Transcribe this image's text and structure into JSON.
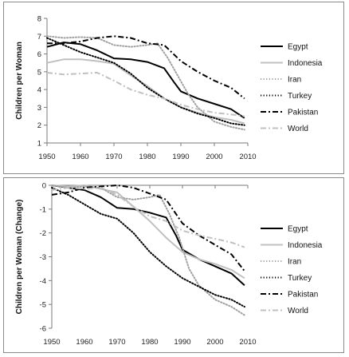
{
  "chart_data": [
    {
      "type": "line",
      "ylabel": "Children per Woman",
      "xlabel": "",
      "xlim": [
        1950,
        2010
      ],
      "ylim": [
        1,
        8
      ],
      "x_ticks": [
        "1950",
        "1960",
        "1970",
        "1980",
        "1990",
        "2000",
        "2010"
      ],
      "y_ticks": [
        "1",
        "2",
        "3",
        "4",
        "5",
        "6",
        "7",
        "8"
      ],
      "grid": false,
      "legend_position": "right",
      "series": [
        {
          "name": "Egypt",
          "color": "#000000",
          "style": "solid",
          "points": [
            [
              1950,
              6.4
            ],
            [
              1955,
              6.65
            ],
            [
              1960,
              6.55
            ],
            [
              1965,
              6.2
            ],
            [
              1970,
              5.75
            ],
            [
              1975,
              5.7
            ],
            [
              1980,
              5.55
            ],
            [
              1985,
              5.2
            ],
            [
              1988,
              4.4
            ],
            [
              1990,
              3.9
            ],
            [
              1995,
              3.5
            ],
            [
              2000,
              3.2
            ],
            [
              2005,
              2.9
            ],
            [
              2009,
              2.4
            ]
          ]
        },
        {
          "name": "Indonesia",
          "color": "#c0c0c0",
          "style": "solid",
          "points": [
            [
              1950,
              5.5
            ],
            [
              1955,
              5.7
            ],
            [
              1960,
              5.7
            ],
            [
              1965,
              5.6
            ],
            [
              1970,
              5.45
            ],
            [
              1975,
              4.8
            ],
            [
              1980,
              4.2
            ],
            [
              1985,
              3.5
            ],
            [
              1990,
              3.0
            ],
            [
              1995,
              2.7
            ],
            [
              2000,
              2.45
            ],
            [
              2005,
              2.3
            ],
            [
              2009,
              2.1
            ]
          ]
        },
        {
          "name": "Iran",
          "color": "#a0a0a0",
          "style": "dotted",
          "points": [
            [
              1950,
              7.0
            ],
            [
              1955,
              6.9
            ],
            [
              1960,
              6.95
            ],
            [
              1965,
              6.9
            ],
            [
              1970,
              6.5
            ],
            [
              1975,
              6.4
            ],
            [
              1980,
              6.5
            ],
            [
              1983,
              6.6
            ],
            [
              1986,
              5.8
            ],
            [
              1989,
              4.8
            ],
            [
              1992,
              3.8
            ],
            [
              1995,
              3.0
            ],
            [
              2000,
              2.2
            ],
            [
              2005,
              1.9
            ],
            [
              2009,
              1.75
            ]
          ]
        },
        {
          "name": "Turkey",
          "color": "#000000",
          "style": "dotted",
          "points": [
            [
              1950,
              6.9
            ],
            [
              1955,
              6.5
            ],
            [
              1960,
              6.1
            ],
            [
              1965,
              5.8
            ],
            [
              1970,
              5.5
            ],
            [
              1975,
              4.9
            ],
            [
              1980,
              4.1
            ],
            [
              1985,
              3.5
            ],
            [
              1990,
              3.0
            ],
            [
              1995,
              2.65
            ],
            [
              2000,
              2.4
            ],
            [
              2005,
              2.1
            ],
            [
              2009,
              2.0
            ]
          ]
        },
        {
          "name": "Pakistan",
          "color": "#000000",
          "style": "dashdot",
          "points": [
            [
              1950,
              6.6
            ],
            [
              1955,
              6.6
            ],
            [
              1960,
              6.7
            ],
            [
              1965,
              6.9
            ],
            [
              1970,
              7.0
            ],
            [
              1975,
              6.9
            ],
            [
              1980,
              6.6
            ],
            [
              1985,
              6.5
            ],
            [
              1990,
              5.6
            ],
            [
              1995,
              5.0
            ],
            [
              2000,
              4.5
            ],
            [
              2005,
              4.1
            ],
            [
              2009,
              3.5
            ]
          ]
        },
        {
          "name": "World",
          "color": "#c0c0c0",
          "style": "dashdot",
          "points": [
            [
              1950,
              4.95
            ],
            [
              1955,
              4.85
            ],
            [
              1960,
              4.9
            ],
            [
              1965,
              4.95
            ],
            [
              1970,
              4.5
            ],
            [
              1975,
              4.0
            ],
            [
              1980,
              3.7
            ],
            [
              1985,
              3.5
            ],
            [
              1990,
              3.15
            ],
            [
              1995,
              2.9
            ],
            [
              2000,
              2.7
            ],
            [
              2005,
              2.6
            ],
            [
              2009,
              2.5
            ]
          ]
        }
      ]
    },
    {
      "type": "line",
      "ylabel": "Children per Woman (Change)",
      "xlabel": "",
      "xlim": [
        1950,
        2010
      ],
      "ylim": [
        -6,
        0
      ],
      "x_ticks": [
        "1950",
        "1960",
        "1970",
        "1980",
        "1990",
        "2000",
        "2010"
      ],
      "y_ticks": [
        "0",
        "-1",
        "-2",
        "-3",
        "-4",
        "-5",
        "-6"
      ],
      "grid": false,
      "legend_position": "right",
      "series": [
        {
          "name": "Egypt",
          "color": "#000000",
          "style": "solid",
          "points": [
            [
              1950,
              0
            ],
            [
              1955,
              -0.1
            ],
            [
              1960,
              -0.2
            ],
            [
              1965,
              -0.5
            ],
            [
              1970,
              -0.95
            ],
            [
              1975,
              -1.0
            ],
            [
              1980,
              -1.15
            ],
            [
              1985,
              -1.35
            ],
            [
              1988,
              -2.1
            ],
            [
              1990,
              -2.7
            ],
            [
              1995,
              -3.1
            ],
            [
              2000,
              -3.4
            ],
            [
              2005,
              -3.7
            ],
            [
              2009,
              -4.2
            ]
          ]
        },
        {
          "name": "Indonesia",
          "color": "#c0c0c0",
          "style": "solid",
          "points": [
            [
              1950,
              0
            ],
            [
              1955,
              -0.05
            ],
            [
              1960,
              0
            ],
            [
              1965,
              -0.15
            ],
            [
              1970,
              -0.3
            ],
            [
              1975,
              -0.9
            ],
            [
              1980,
              -1.5
            ],
            [
              1985,
              -2.2
            ],
            [
              1990,
              -2.8
            ],
            [
              1995,
              -3.1
            ],
            [
              2000,
              -3.3
            ],
            [
              2005,
              -3.55
            ],
            [
              2009,
              -3.9
            ]
          ]
        },
        {
          "name": "Iran",
          "color": "#a0a0a0",
          "style": "dotted",
          "points": [
            [
              1950,
              0
            ],
            [
              1955,
              -0.1
            ],
            [
              1960,
              -0.05
            ],
            [
              1965,
              -0.1
            ],
            [
              1970,
              -0.5
            ],
            [
              1975,
              -0.6
            ],
            [
              1980,
              -0.5
            ],
            [
              1983,
              -0.4
            ],
            [
              1986,
              -1.2
            ],
            [
              1989,
              -2.2
            ],
            [
              1992,
              -3.5
            ],
            [
              1995,
              -4.2
            ],
            [
              2000,
              -4.8
            ],
            [
              2005,
              -5.1
            ],
            [
              2009,
              -5.45
            ]
          ]
        },
        {
          "name": "Turkey",
          "color": "#000000",
          "style": "dotted",
          "points": [
            [
              1950,
              -0.1
            ],
            [
              1955,
              -0.4
            ],
            [
              1960,
              -0.8
            ],
            [
              1965,
              -1.2
            ],
            [
              1970,
              -1.4
            ],
            [
              1975,
              -2.0
            ],
            [
              1980,
              -2.8
            ],
            [
              1985,
              -3.4
            ],
            [
              1990,
              -3.9
            ],
            [
              1995,
              -4.25
            ],
            [
              2000,
              -4.6
            ],
            [
              2005,
              -4.8
            ],
            [
              2009,
              -5.1
            ]
          ]
        },
        {
          "name": "Pakistan",
          "color": "#000000",
          "style": "dashdot",
          "points": [
            [
              1950,
              -0.4
            ],
            [
              1955,
              -0.3
            ],
            [
              1960,
              -0.1
            ],
            [
              1965,
              -0.05
            ],
            [
              1970,
              0
            ],
            [
              1975,
              -0.1
            ],
            [
              1980,
              -0.35
            ],
            [
              1985,
              -0.6
            ],
            [
              1990,
              -1.6
            ],
            [
              1995,
              -2.1
            ],
            [
              2000,
              -2.5
            ],
            [
              2005,
              -2.9
            ],
            [
              2009,
              -3.6
            ]
          ]
        },
        {
          "name": "World",
          "color": "#c0c0c0",
          "style": "dashdot",
          "points": [
            [
              1950,
              -0.2
            ],
            [
              1955,
              -0.1
            ],
            [
              1960,
              -0.15
            ],
            [
              1965,
              -0.1
            ],
            [
              1970,
              -0.4
            ],
            [
              1975,
              -0.9
            ],
            [
              1980,
              -1.3
            ],
            [
              1985,
              -1.5
            ],
            [
              1990,
              -1.9
            ],
            [
              1995,
              -2.1
            ],
            [
              2000,
              -2.25
            ],
            [
              2005,
              -2.4
            ],
            [
              2009,
              -2.6
            ]
          ]
        }
      ]
    }
  ]
}
